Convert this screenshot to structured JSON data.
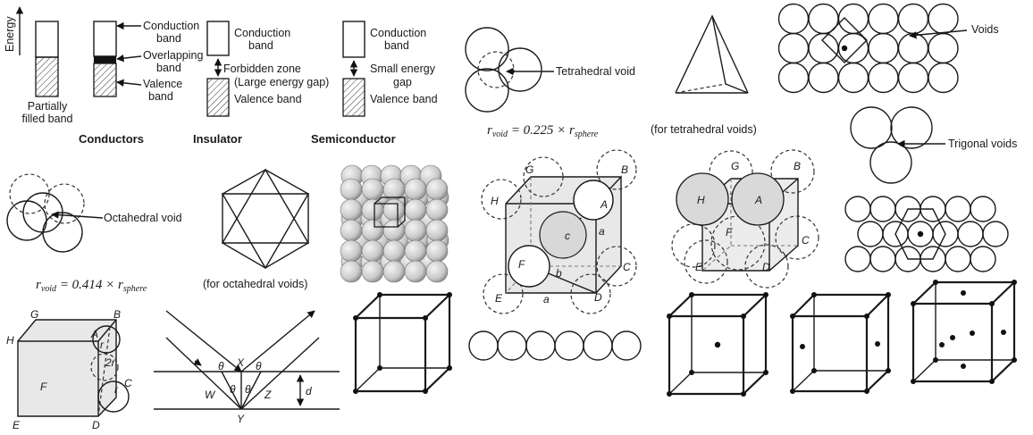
{
  "band_theory": {
    "energy_axis": "Energy",
    "conductor": {
      "partially_filled": [
        "Partially",
        "filled band"
      ],
      "conduction": [
        "Conduction",
        "band"
      ],
      "overlapping": [
        "Overlapping",
        "band"
      ],
      "valence": [
        "Valence",
        "band"
      ],
      "title_left": "Conductors"
    },
    "insulator": {
      "conduction": [
        "Conduction",
        "band"
      ],
      "forbidden": [
        "Forbidden zone",
        "(Large energy gap)"
      ],
      "valence": "Valence band",
      "title": "Insulator"
    },
    "semiconductor": {
      "conduction": [
        "Conduction",
        "band"
      ],
      "small_gap": [
        "Small energy",
        "gap"
      ],
      "valence": "Valence band",
      "title": "Semiconductor"
    }
  },
  "voids": {
    "tetrahedral_label": "Tetrahedral void",
    "tetrahedral_formula": {
      "lhs": "r",
      "lhs_sub": "void",
      "rhs": " = 0.225 × r",
      "rhs_sub": "sphere"
    },
    "tetrahedral_caption": "(for tetrahedral voids)",
    "voids_label": "Voids",
    "trigonal_label": "Trigonal voids",
    "octahedral_label": "Octahedral void",
    "octahedral_formula": {
      "lhs": "r",
      "lhs_sub": "void",
      "rhs": " = 0.414 × r",
      "rhs_sub": "sphere"
    },
    "octahedral_caption": "(for octahedral voids)"
  },
  "cube_labels": {
    "tetra_cube": {
      "G": "G",
      "B": "B",
      "H": "H",
      "A": "A",
      "c": "c",
      "a": "a",
      "F": "F",
      "b": "b",
      "C": "C",
      "E": "E",
      "D": "D",
      "a2": "a"
    },
    "octa_cube": {
      "G": "G",
      "B": "B",
      "H": "H",
      "A": "A",
      "F": "F",
      "C": "C",
      "E": "E",
      "D": "D"
    },
    "diag_cube": {
      "G": "G",
      "B": "B",
      "H": "H",
      "A": "A",
      "r": "r",
      "r2": "2r",
      "F": "F",
      "C": "C",
      "r3": "r",
      "E": "E",
      "D": "D"
    }
  },
  "bragg": {
    "theta": "θ",
    "X": "X",
    "W": "W",
    "Y": "Y",
    "Z": "Z",
    "d": "d"
  }
}
